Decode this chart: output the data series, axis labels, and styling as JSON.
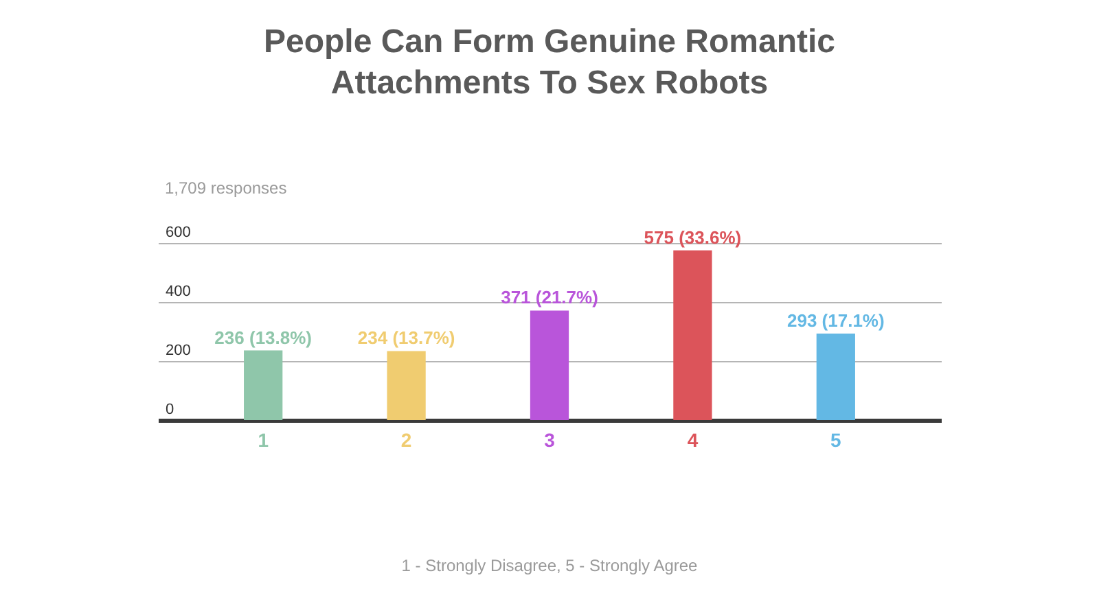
{
  "chart_data": {
    "type": "bar",
    "title": "People Can Form Genuine Romantic Attachments To Sex Robots",
    "annotations": [
      "1,709 responses",
      "1 - Strongly Disagree, 5 - Strongly Agree"
    ],
    "categories": [
      "1",
      "2",
      "3",
      "4",
      "5"
    ],
    "values": [
      236,
      234,
      371,
      575,
      293
    ],
    "colors": [
      "#8fc6aa",
      "#f0cc70",
      "#b955da",
      "#dc545a",
      "#63b8e4"
    ],
    "value_labels": [
      "236 (13.8%)",
      "234 (13.7%)",
      "371 (21.7%)",
      "575 (33.6%)",
      "293 (17.1%)"
    ],
    "ylim": [
      0,
      600
    ],
    "yticks": [
      0,
      200,
      400,
      600
    ],
    "grid": "y"
  }
}
